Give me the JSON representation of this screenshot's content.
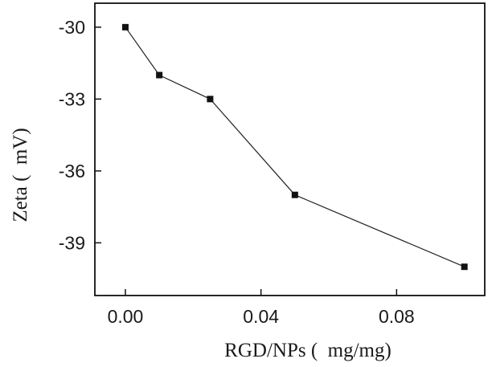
{
  "chart_data": {
    "type": "line",
    "title": "",
    "xlabel": "RGD/NPs (  mg/mg)",
    "ylabel": "Zeta (  mV)",
    "x": [
      0.0,
      0.01,
      0.025,
      0.05,
      0.1
    ],
    "series": [
      {
        "name": "Zeta",
        "values": [
          -30,
          -32,
          -33,
          -37,
          -40
        ]
      }
    ],
    "xlim": [
      -0.009,
      0.106
    ],
    "ylim": [
      -41.2,
      -29.0
    ],
    "xticks": [
      0.0,
      0.04,
      0.08
    ],
    "xtick_labels": [
      "0.00",
      "0.04",
      "0.08"
    ],
    "yticks": [
      -30,
      -33,
      -36,
      -39
    ],
    "ytick_labels": [
      "-30",
      "-33",
      "-36",
      "-39"
    ],
    "marker": "square",
    "grid": false,
    "legend": false,
    "colors": {
      "line": "#222222",
      "marker": "#111111",
      "axis": "#111111"
    }
  }
}
